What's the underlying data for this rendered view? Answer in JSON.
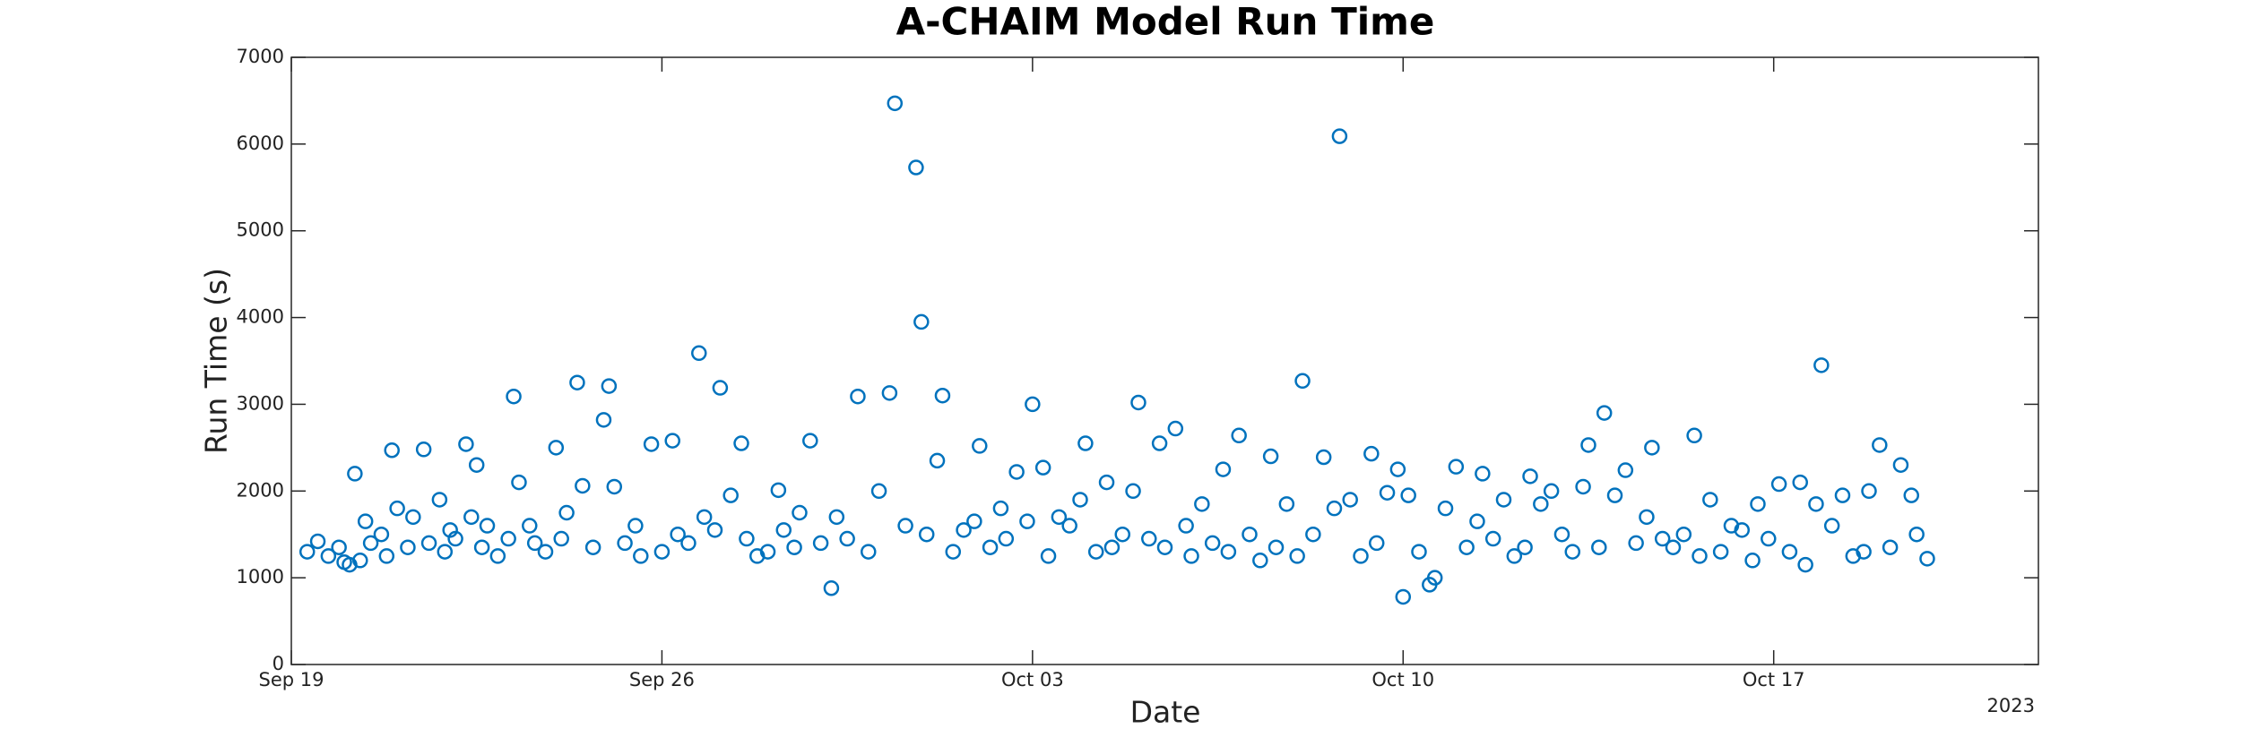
{
  "chart_data": {
    "type": "scatter",
    "title": "A-CHAIM Model Run Time",
    "xlabel": "Date",
    "ylabel": "Run Time (s)",
    "annotation": "2023",
    "xlim": [
      0,
      33
    ],
    "xticks": [
      {
        "value": 0,
        "label": "Sep 19"
      },
      {
        "value": 7,
        "label": "Sep 26"
      },
      {
        "value": 14,
        "label": "Oct 03"
      },
      {
        "value": 21,
        "label": "Oct 10"
      },
      {
        "value": 28,
        "label": "Oct 17"
      }
    ],
    "ylim": [
      0,
      7000
    ],
    "yticks": [
      0,
      1000,
      2000,
      3000,
      4000,
      5000,
      6000,
      7000
    ],
    "grid": false,
    "color": "#0072bd",
    "x": [
      0.3,
      0.5,
      0.7,
      0.9,
      1.0,
      1.1,
      1.2,
      1.3,
      1.4,
      1.5,
      1.7,
      1.8,
      1.9,
      2.0,
      2.2,
      2.3,
      2.5,
      2.6,
      2.8,
      2.9,
      3.0,
      3.1,
      3.3,
      3.4,
      3.5,
      3.6,
      3.7,
      3.9,
      4.1,
      4.2,
      4.3,
      4.5,
      4.6,
      4.8,
      5.0,
      5.1,
      5.2,
      5.4,
      5.5,
      5.7,
      5.9,
      6.0,
      6.1,
      6.3,
      6.5,
      6.6,
      6.8,
      7.0,
      7.2,
      7.3,
      7.5,
      7.7,
      7.8,
      8.0,
      8.1,
      8.3,
      8.5,
      8.6,
      8.8,
      9.0,
      9.2,
      9.3,
      9.5,
      9.6,
      9.8,
      10.0,
      10.2,
      10.3,
      10.5,
      10.7,
      10.9,
      11.1,
      11.3,
      11.4,
      11.6,
      11.8,
      11.9,
      12.0,
      12.2,
      12.3,
      12.5,
      12.7,
      12.9,
      13.0,
      13.2,
      13.4,
      13.5,
      13.7,
      13.9,
      14.0,
      14.2,
      14.3,
      14.5,
      14.7,
      14.9,
      15.0,
      15.2,
      15.4,
      15.5,
      15.7,
      15.9,
      16.0,
      16.2,
      16.4,
      16.5,
      16.7,
      16.9,
      17.0,
      17.2,
      17.4,
      17.6,
      17.7,
      17.9,
      18.1,
      18.3,
      18.5,
      18.6,
      18.8,
      19.0,
      19.1,
      19.3,
      19.5,
      19.7,
      19.8,
      20.0,
      20.2,
      20.4,
      20.5,
      20.7,
      20.9,
      21.0,
      21.1,
      21.3,
      21.5,
      21.6,
      21.8,
      22.0,
      22.2,
      22.4,
      22.5,
      22.7,
      22.9,
      23.1,
      23.3,
      23.4,
      23.6,
      23.8,
      24.0,
      24.2,
      24.4,
      24.5,
      24.7,
      24.8,
      25.0,
      25.2,
      25.4,
      25.6,
      25.7,
      25.9,
      26.1,
      26.3,
      26.5,
      26.6,
      26.8,
      27.0,
      27.2,
      27.4,
      27.6,
      27.7,
      27.9,
      28.1,
      28.3,
      28.5,
      28.6,
      28.8,
      28.9,
      29.1,
      29.3,
      29.5,
      29.7,
      29.8,
      30.0,
      30.2,
      30.4,
      30.6,
      30.7,
      30.9
    ],
    "values": [
      1300,
      1420,
      1250,
      1350,
      1180,
      1150,
      2200,
      1200,
      1650,
      1400,
      1500,
      1250,
      2470,
      1800,
      1350,
      1700,
      2480,
      1400,
      1900,
      1300,
      1550,
      1450,
      2540,
      1700,
      2300,
      1350,
      1600,
      1250,
      1450,
      3090,
      2100,
      1600,
      1400,
      1300,
      2500,
      1450,
      1750,
      3250,
      2060,
      1350,
      2820,
      3210,
      2050,
      1400,
      1600,
      1250,
      2540,
      1300,
      2580,
      1500,
      1400,
      3590,
      1700,
      1550,
      3190,
      1950,
      2550,
      1450,
      1250,
      1300,
      2010,
      1550,
      1350,
      1750,
      2580,
      1400,
      880,
      1700,
      1450,
      3090,
      1300,
      2000,
      3130,
      6470,
      1600,
      5730,
      3950,
      1500,
      2350,
      3100,
      1300,
      1550,
      1650,
      2520,
      1350,
      1800,
      1450,
      2220,
      1650,
      3000,
      2270,
      1250,
      1700,
      1600,
      1900,
      2550,
      1300,
      2100,
      1350,
      1500,
      2000,
      3020,
      1450,
      2550,
      1350,
      2720,
      1600,
      1250,
      1850,
      1400,
      2250,
      1300,
      2640,
      1500,
      1200,
      2400,
      1350,
      1850,
      1250,
      3270,
      1500,
      2390,
      1800,
      6090,
      1900,
      1250,
      2430,
      1400,
      1980,
      2250,
      780,
      1950,
      1300,
      920,
      1000,
      1800,
      2280,
      1350,
      1650,
      2200,
      1450,
      1900,
      1250,
      1350,
      2170,
      1850,
      2000,
      1500,
      1300,
      2050,
      2530,
      1350,
      2900,
      1950,
      2240,
      1400,
      1700,
      2500,
      1450,
      1350,
      1500,
      2640,
      1250,
      1900,
      1300,
      1600,
      1550,
      1200,
      1850,
      1450,
      2080,
      1300,
      2100,
      1150,
      1850,
      3450,
      1600,
      1950,
      1250,
      1300,
      2000,
      2530,
      1350,
      2300,
      1950,
      1500,
      1220
    ]
  }
}
